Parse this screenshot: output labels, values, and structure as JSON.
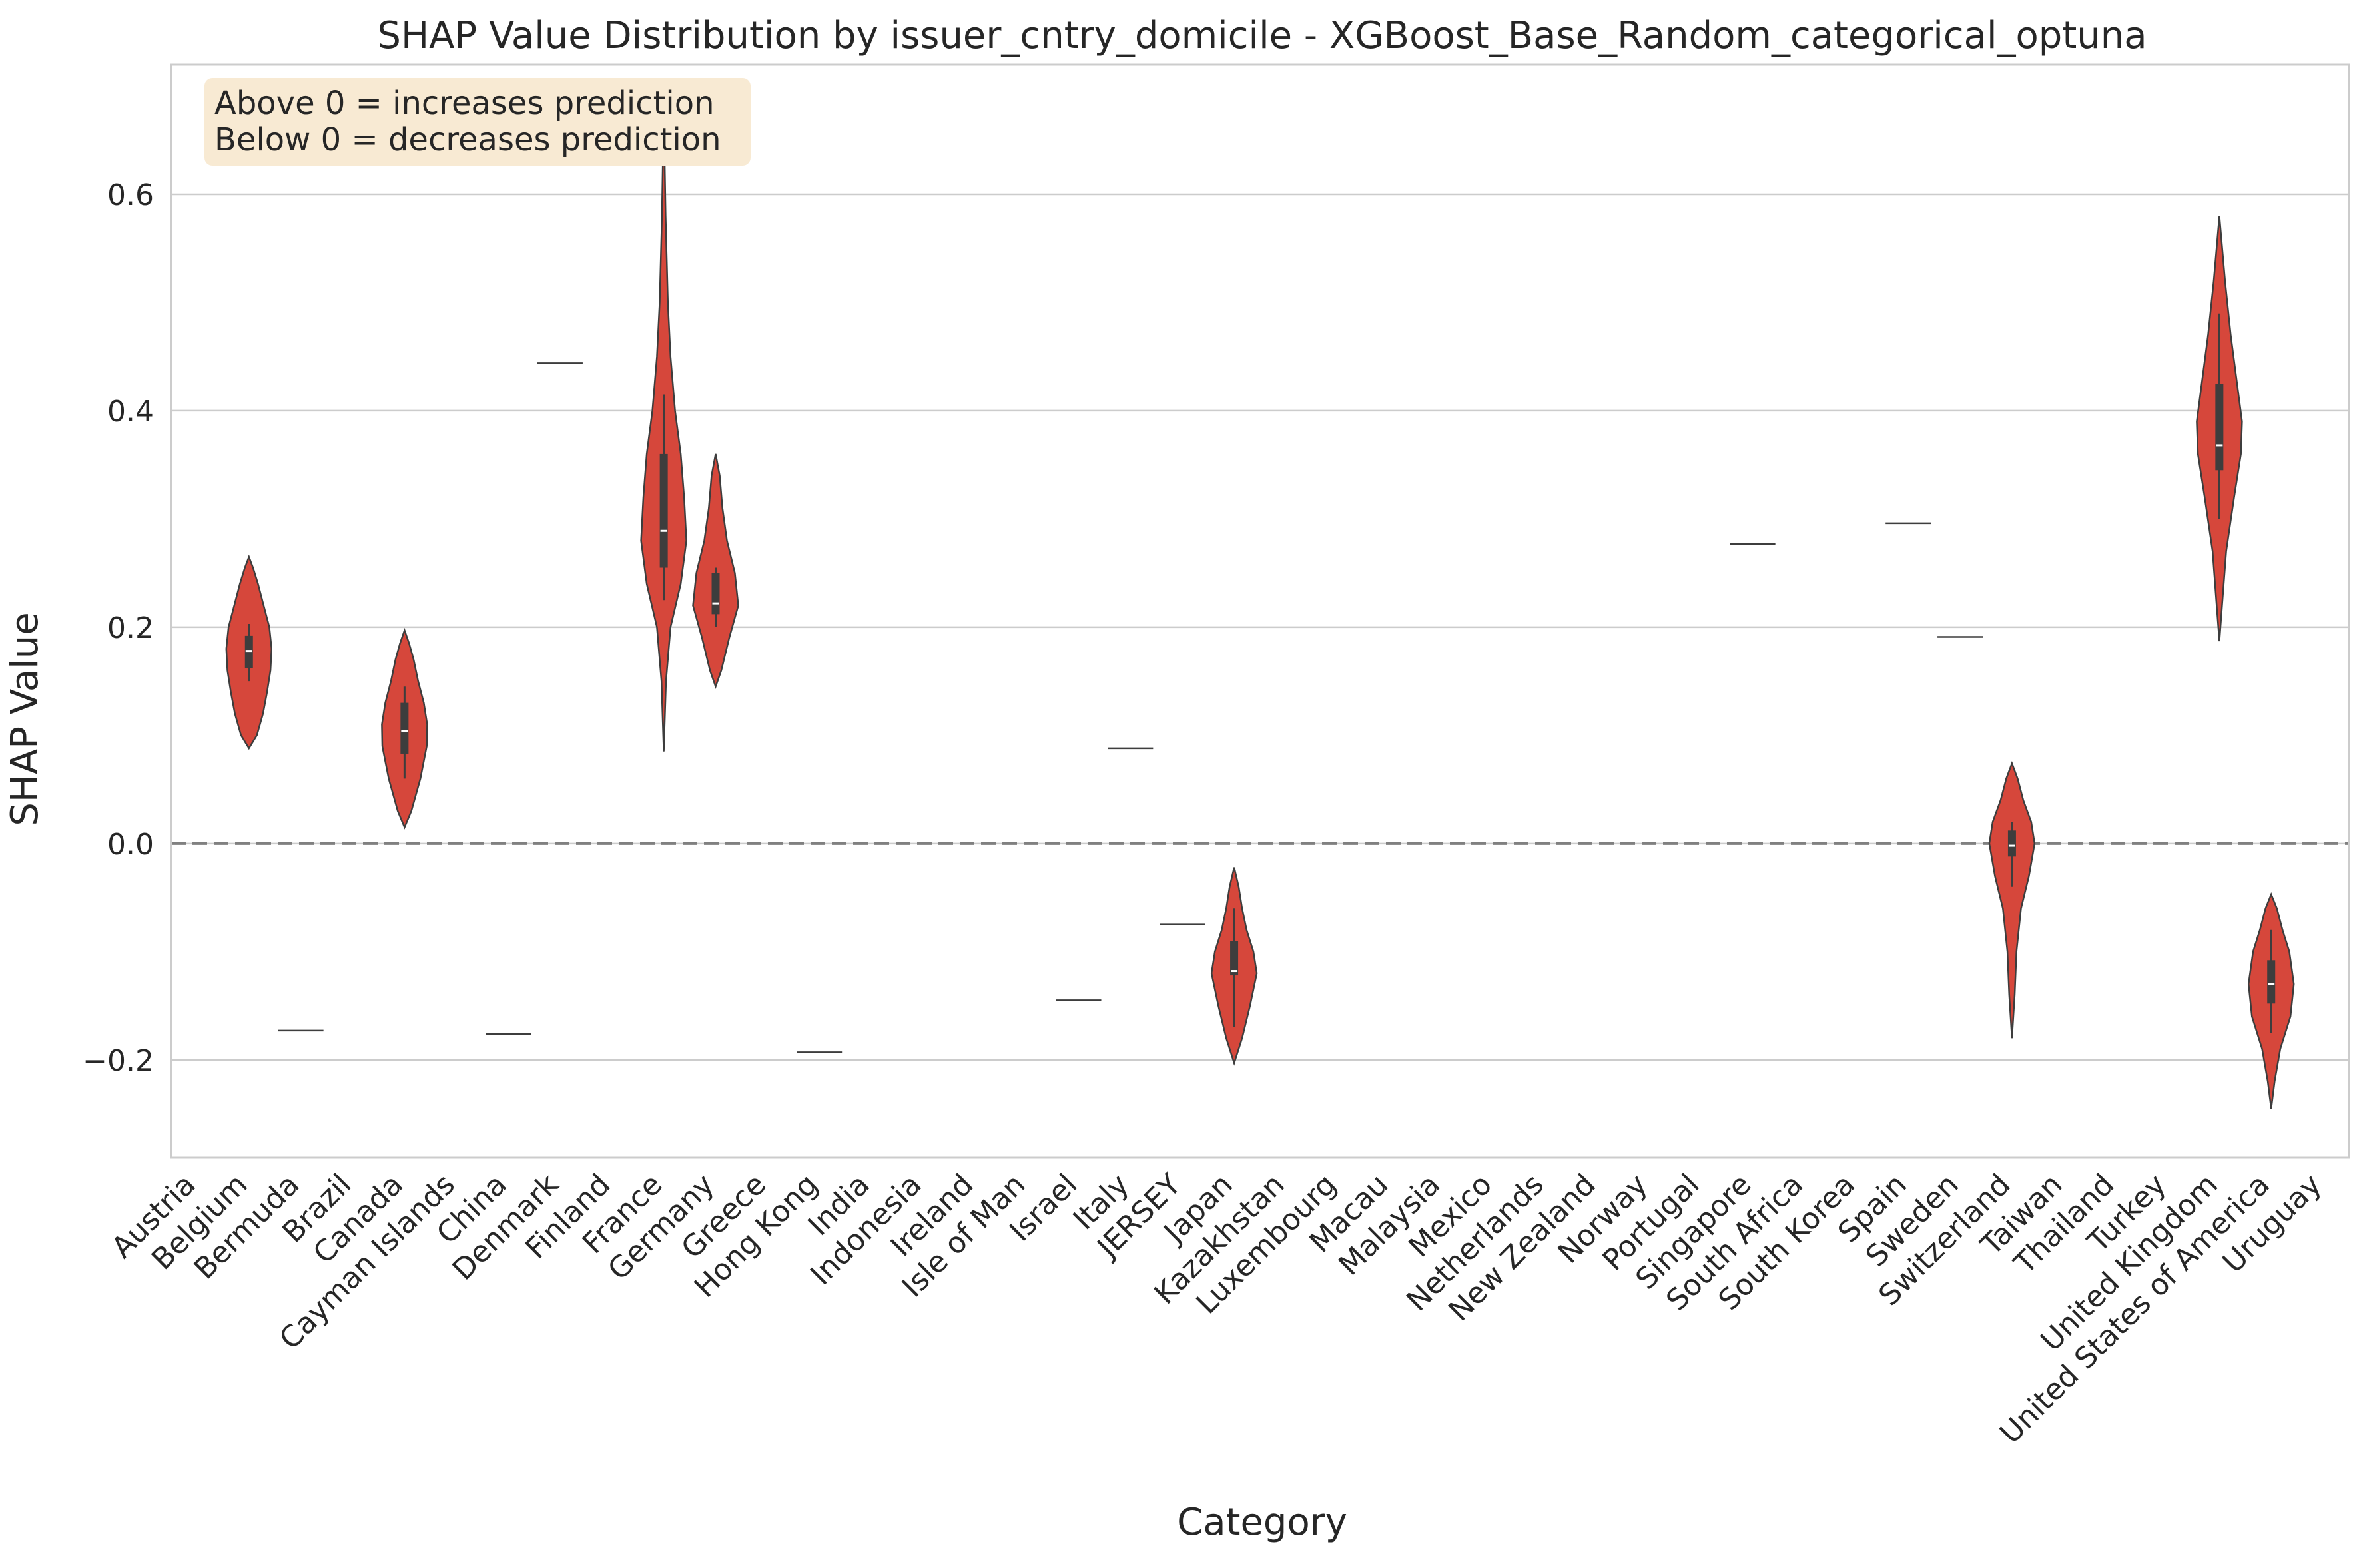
{
  "chart_data": {
    "type": "violin",
    "title": "SHAP Value Distribution by issuer_cntry_domicile - XGBoost_Base_Random_categorical_optuna",
    "xlabel": "Category",
    "ylabel": "SHAP Value",
    "ylim": [
      -0.29,
      0.72
    ],
    "yticks": [
      {
        "value": -0.2,
        "label": "−0.2"
      },
      {
        "value": 0.0,
        "label": "0.0"
      },
      {
        "value": 0.2,
        "label": "0.2"
      },
      {
        "value": 0.4,
        "label": "0.4"
      },
      {
        "value": 0.6,
        "label": "0.6"
      }
    ],
    "grid": true,
    "reference_line": 0.0,
    "legend_note": [
      "Above 0 = increases prediction",
      "Below 0 = decreases prediction"
    ],
    "colors": {
      "violin_fill": "#d6473b",
      "violin_edge": "#3d3d3d",
      "grid": "#cccccc",
      "reference": "#808080",
      "note_bg": "#f8ead3",
      "box": "#3d3d3d"
    },
    "categories": [
      "Austria",
      "Belgium",
      "Bermuda",
      "Brazil",
      "Canada",
      "Cayman Islands",
      "China",
      "Denmark",
      "Finland",
      "France",
      "Germany",
      "Greece",
      "Hong Kong",
      "India",
      "Indonesia",
      "Ireland",
      "Isle of Man",
      "Israel",
      "Italy",
      "JERSEY",
      "Japan",
      "Kazakhstan",
      "Luxembourg",
      "Macau",
      "Malaysia",
      "Mexico",
      "Netherlands",
      "New Zealand",
      "Norway",
      "Portugal",
      "Singapore",
      "South Africa",
      "South Korea",
      "Spain",
      "Sweden",
      "Switzerland",
      "Taiwan",
      "Thailand",
      "Turkey",
      "United Kingdom",
      "United States of America",
      "Uruguay"
    ],
    "violins": [
      {
        "category_index": 1,
        "min": 0.088,
        "max": 0.265,
        "q1": 0.162,
        "median": 0.178,
        "q3": 0.192,
        "whisker_low": 0.15,
        "whisker_high": 0.203,
        "profile": [
          [
            0.088,
            0
          ],
          [
            0.1,
            0.35
          ],
          [
            0.12,
            0.62
          ],
          [
            0.14,
            0.8
          ],
          [
            0.16,
            0.95
          ],
          [
            0.18,
            1.0
          ],
          [
            0.2,
            0.9
          ],
          [
            0.22,
            0.65
          ],
          [
            0.24,
            0.4
          ],
          [
            0.255,
            0.18
          ],
          [
            0.265,
            0
          ]
        ]
      },
      {
        "category_index": 4,
        "min": 0.015,
        "max": 0.197,
        "q1": 0.083,
        "median": 0.104,
        "q3": 0.13,
        "whisker_low": 0.06,
        "whisker_high": 0.145,
        "profile": [
          [
            0.015,
            0
          ],
          [
            0.03,
            0.3
          ],
          [
            0.06,
            0.7
          ],
          [
            0.09,
            0.98
          ],
          [
            0.11,
            1.0
          ],
          [
            0.13,
            0.85
          ],
          [
            0.15,
            0.6
          ],
          [
            0.17,
            0.4
          ],
          [
            0.185,
            0.2
          ],
          [
            0.197,
            0
          ]
        ]
      },
      {
        "category_index": 7,
        "single": 0.444
      },
      {
        "category_index": 9,
        "min": 0.085,
        "max": 0.68,
        "q1": 0.255,
        "median": 0.289,
        "q3": 0.36,
        "whisker_low": 0.225,
        "whisker_high": 0.415,
        "profile": [
          [
            0.085,
            0
          ],
          [
            0.15,
            0.1
          ],
          [
            0.2,
            0.3
          ],
          [
            0.24,
            0.75
          ],
          [
            0.28,
            1.0
          ],
          [
            0.32,
            0.9
          ],
          [
            0.36,
            0.75
          ],
          [
            0.4,
            0.5
          ],
          [
            0.45,
            0.3
          ],
          [
            0.5,
            0.18
          ],
          [
            0.58,
            0.08
          ],
          [
            0.68,
            0
          ]
        ]
      },
      {
        "category_index": 10,
        "min": 0.145,
        "max": 0.36,
        "q1": 0.212,
        "median": 0.222,
        "q3": 0.25,
        "whisker_low": 0.2,
        "whisker_high": 0.255,
        "profile": [
          [
            0.145,
            0
          ],
          [
            0.16,
            0.25
          ],
          [
            0.19,
            0.6
          ],
          [
            0.22,
            1.0
          ],
          [
            0.25,
            0.85
          ],
          [
            0.28,
            0.5
          ],
          [
            0.31,
            0.3
          ],
          [
            0.34,
            0.18
          ],
          [
            0.36,
            0
          ]
        ]
      },
      {
        "category_index": 2,
        "single": -0.173
      },
      {
        "category_index": 6,
        "single": -0.176
      },
      {
        "category_index": 12,
        "single": -0.193
      },
      {
        "category_index": 17,
        "single": -0.145
      },
      {
        "category_index": 18,
        "single": 0.088
      },
      {
        "category_index": 19,
        "single": -0.075
      },
      {
        "category_index": 30,
        "single": 0.277
      },
      {
        "category_index": 33,
        "single": 0.296
      },
      {
        "category_index": 34,
        "single": 0.191
      },
      {
        "category_index": 20,
        "min": -0.203,
        "max": -0.022,
        "q1": -0.122,
        "median": -0.118,
        "q3": -0.09,
        "whisker_low": -0.17,
        "whisker_high": -0.06,
        "profile": [
          [
            -0.203,
            0
          ],
          [
            -0.18,
            0.35
          ],
          [
            -0.15,
            0.7
          ],
          [
            -0.12,
            1.0
          ],
          [
            -0.1,
            0.85
          ],
          [
            -0.08,
            0.55
          ],
          [
            -0.06,
            0.35
          ],
          [
            -0.04,
            0.2
          ],
          [
            -0.022,
            0
          ]
        ]
      },
      {
        "category_index": 35,
        "min": -0.18,
        "max": 0.074,
        "q1": -0.012,
        "median": -0.002,
        "q3": 0.012,
        "whisker_low": -0.04,
        "whisker_high": 0.02,
        "profile": [
          [
            -0.18,
            0
          ],
          [
            -0.14,
            0.12
          ],
          [
            -0.1,
            0.2
          ],
          [
            -0.06,
            0.4
          ],
          [
            -0.03,
            0.75
          ],
          [
            0.0,
            1.0
          ],
          [
            0.02,
            0.85
          ],
          [
            0.04,
            0.5
          ],
          [
            0.06,
            0.25
          ],
          [
            0.074,
            0
          ]
        ]
      },
      {
        "category_index": 39,
        "min": 0.187,
        "max": 0.58,
        "q1": 0.345,
        "median": 0.368,
        "q3": 0.425,
        "whisker_low": 0.3,
        "whisker_high": 0.49,
        "profile": [
          [
            0.187,
            0
          ],
          [
            0.22,
            0.12
          ],
          [
            0.27,
            0.3
          ],
          [
            0.32,
            0.65
          ],
          [
            0.36,
            0.95
          ],
          [
            0.39,
            1.0
          ],
          [
            0.43,
            0.75
          ],
          [
            0.47,
            0.5
          ],
          [
            0.52,
            0.25
          ],
          [
            0.58,
            0
          ]
        ]
      },
      {
        "category_index": 40,
        "min": -0.245,
        "max": -0.047,
        "q1": -0.148,
        "median": -0.13,
        "q3": -0.108,
        "whisker_low": -0.175,
        "whisker_high": -0.08,
        "profile": [
          [
            -0.245,
            0
          ],
          [
            -0.22,
            0.15
          ],
          [
            -0.19,
            0.4
          ],
          [
            -0.16,
            0.85
          ],
          [
            -0.13,
            1.0
          ],
          [
            -0.1,
            0.8
          ],
          [
            -0.08,
            0.5
          ],
          [
            -0.06,
            0.25
          ],
          [
            -0.047,
            0
          ]
        ]
      }
    ]
  }
}
